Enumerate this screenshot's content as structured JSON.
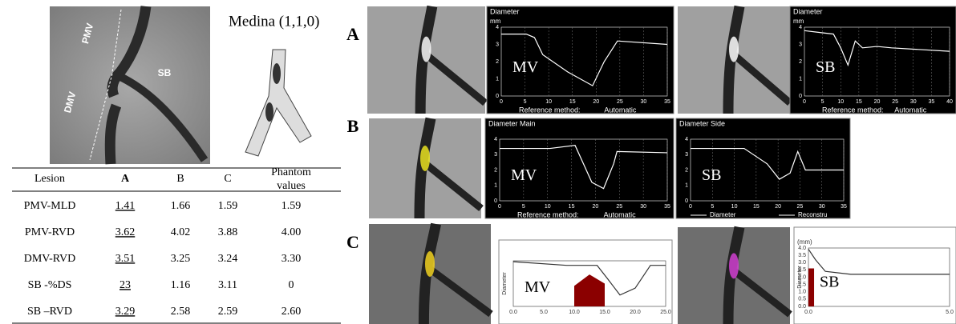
{
  "figure": {
    "vessel_labels": [
      "PMV",
      "SB",
      "DMV"
    ],
    "medina": "Medina (1,1,0)"
  },
  "table": {
    "headers": [
      "Lesion",
      "A",
      "B",
      "C",
      "Phantom values"
    ],
    "rows": [
      [
        "PMV-MLD",
        "1.41",
        "1.66",
        "1.59",
        "1.59"
      ],
      [
        "PMV-RVD",
        "3.62",
        "4.02",
        "3.88",
        "4.00"
      ],
      [
        "DMV-RVD",
        "3.51",
        "3.25",
        "3.24",
        "3.30"
      ],
      [
        "SB -%DS",
        "23",
        "1.16",
        "3.11",
        "0"
      ],
      [
        "SB –RVD",
        "3.29",
        "2.58",
        "2.59",
        "2.60"
      ]
    ]
  },
  "panels": [
    {
      "label": "A",
      "plots": [
        {
          "title": "Diameter",
          "unit": "mm",
          "name": "MV",
          "yticks": [
            "0",
            "1",
            "2",
            "3",
            "4"
          ],
          "xticks": [
            "0",
            "5",
            "10",
            "15",
            "20",
            "25",
            "30",
            "35"
          ],
          "method": "Reference method:",
          "method_value": "Automatic"
        },
        {
          "title": "Diameter",
          "unit": "mm",
          "name": "SB",
          "yticks": [
            "0",
            "1",
            "2",
            "3",
            "4"
          ],
          "xticks": [
            "0",
            "5",
            "10",
            "15",
            "20",
            "25",
            "30",
            "35",
            "40"
          ],
          "method": "Reference method:",
          "method_value": "Automatic"
        }
      ]
    },
    {
      "label": "B",
      "plots": [
        {
          "title": "Diameter Main",
          "name": "MV",
          "yticks": [
            "0",
            "1",
            "2",
            "3",
            "4"
          ],
          "xticks": [
            "0",
            "5",
            "10",
            "15",
            "20",
            "25",
            "30",
            "35"
          ],
          "method": "Reference method:",
          "method_value": "Automatic"
        },
        {
          "title": "Diameter Side",
          "name": "SB",
          "yticks": [
            "0",
            "1",
            "2",
            "3",
            "4"
          ],
          "xticks": [
            "0",
            "5",
            "10",
            "15",
            "20",
            "25",
            "30",
            "35"
          ],
          "legend": [
            "Diameter",
            "Reconstru"
          ]
        }
      ]
    },
    {
      "label": "C",
      "plots": [
        {
          "name": "MV",
          "y_label": "Diameter",
          "xticks": [
            "0.0",
            "5.0",
            "10.0",
            "15.0",
            "20.0",
            "25.0"
          ]
        },
        {
          "unit": "(mm)",
          "name": "SB",
          "y_label": "Diameter",
          "yticks": [
            "0.0",
            "0.5",
            "1.0",
            "1.5",
            "2.0",
            "2.5",
            "3.0",
            "3.5",
            "4.0"
          ],
          "xticks": [
            "0.0",
            "5.0"
          ]
        }
      ]
    }
  ]
}
